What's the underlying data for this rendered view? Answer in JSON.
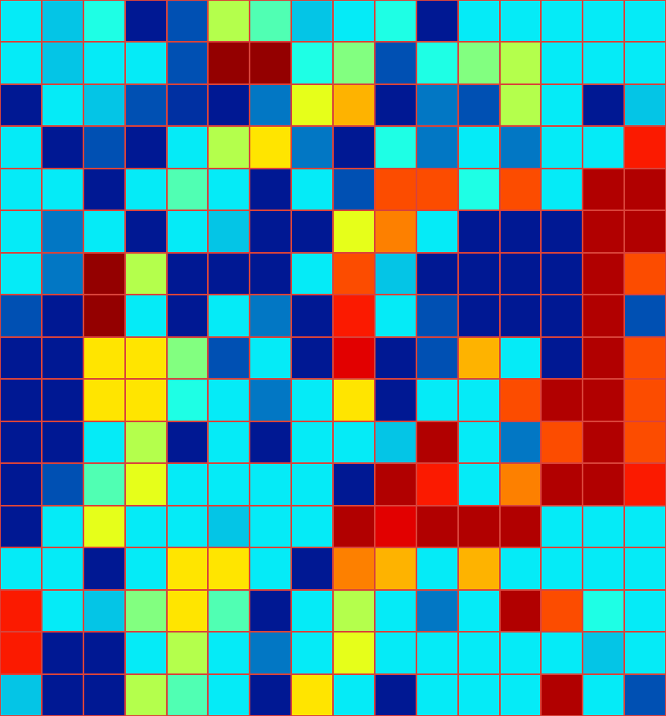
{
  "chart_data": {
    "type": "heatmap",
    "color": "Jet",
    "tick_labels": false,
    "zlim": [
      0,
      1
    ],
    "cells": [
      [
        0.35,
        0.3,
        0.4,
        0.05,
        0.15,
        0.55,
        0.45,
        0.3,
        0.35,
        0.4,
        0.05,
        0.35,
        0.35,
        0.35,
        0.35,
        0.35
      ],
      [
        0.35,
        0.3,
        0.35,
        0.35,
        0.15,
        0.98,
        0.98,
        0.4,
        0.5,
        0.15,
        0.4,
        0.5,
        0.55,
        0.35,
        0.35,
        0.35
      ],
      [
        0.05,
        0.35,
        0.3,
        0.15,
        0.1,
        0.05,
        0.2,
        0.6,
        0.7,
        0.05,
        0.2,
        0.15,
        0.55,
        0.35,
        0.05,
        0.3
      ],
      [
        0.35,
        0.05,
        0.15,
        0.05,
        0.35,
        0.55,
        0.65,
        0.2,
        0.05,
        0.4,
        0.2,
        0.35,
        0.2,
        0.35,
        0.35,
        0.85
      ],
      [
        0.35,
        0.35,
        0.05,
        0.35,
        0.45,
        0.35,
        0.05,
        0.35,
        0.15,
        0.8,
        0.8,
        0.4,
        0.8,
        0.35,
        0.95,
        0.95
      ],
      [
        0.35,
        0.2,
        0.35,
        0.05,
        0.35,
        0.3,
        0.05,
        0.05,
        0.6,
        0.75,
        0.35,
        0.05,
        0.05,
        0.05,
        0.95,
        0.95
      ],
      [
        0.35,
        0.2,
        0.98,
        0.55,
        0.05,
        0.05,
        0.05,
        0.35,
        0.8,
        0.3,
        0.05,
        0.05,
        0.05,
        0.05,
        0.95,
        0.8
      ],
      [
        0.15,
        0.05,
        0.98,
        0.35,
        0.05,
        0.35,
        0.2,
        0.05,
        0.85,
        0.35,
        0.15,
        0.05,
        0.05,
        0.05,
        0.95,
        0.15
      ],
      [
        0.05,
        0.05,
        0.65,
        0.65,
        0.5,
        0.15,
        0.35,
        0.05,
        0.9,
        0.05,
        0.15,
        0.7,
        0.35,
        0.05,
        0.95,
        0.8
      ],
      [
        0.05,
        0.05,
        0.65,
        0.65,
        0.4,
        0.35,
        0.2,
        0.35,
        0.65,
        0.05,
        0.35,
        0.35,
        0.8,
        0.95,
        0.95,
        0.8
      ],
      [
        0.05,
        0.05,
        0.35,
        0.55,
        0.05,
        0.35,
        0.05,
        0.35,
        0.35,
        0.3,
        0.95,
        0.35,
        0.2,
        0.8,
        0.95,
        0.8
      ],
      [
        0.05,
        0.15,
        0.45,
        0.6,
        0.35,
        0.35,
        0.35,
        0.35,
        0.05,
        0.95,
        0.85,
        0.35,
        0.75,
        0.95,
        0.95,
        0.85
      ],
      [
        0.05,
        0.35,
        0.6,
        0.35,
        0.35,
        0.3,
        0.35,
        0.35,
        0.95,
        0.9,
        0.95,
        0.95,
        0.95,
        0.35,
        0.35,
        0.35
      ],
      [
        0.35,
        0.35,
        0.05,
        0.35,
        0.65,
        0.65,
        0.35,
        0.05,
        0.75,
        0.7,
        0.35,
        0.7,
        0.35,
        0.35,
        0.35,
        0.35
      ],
      [
        0.85,
        0.35,
        0.3,
        0.5,
        0.65,
        0.45,
        0.05,
        0.35,
        0.55,
        0.35,
        0.2,
        0.35,
        0.95,
        0.8,
        0.4,
        0.35
      ],
      [
        0.85,
        0.05,
        0.05,
        0.35,
        0.55,
        0.35,
        0.2,
        0.35,
        0.6,
        0.35,
        0.35,
        0.35,
        0.35,
        0.35,
        0.3,
        0.35
      ],
      [
        0.3,
        0.05,
        0.05,
        0.55,
        0.45,
        0.35,
        0.05,
        0.65,
        0.35,
        0.05,
        0.35,
        0.35,
        0.35,
        0.95,
        0.35,
        0.15
      ]
    ]
  }
}
